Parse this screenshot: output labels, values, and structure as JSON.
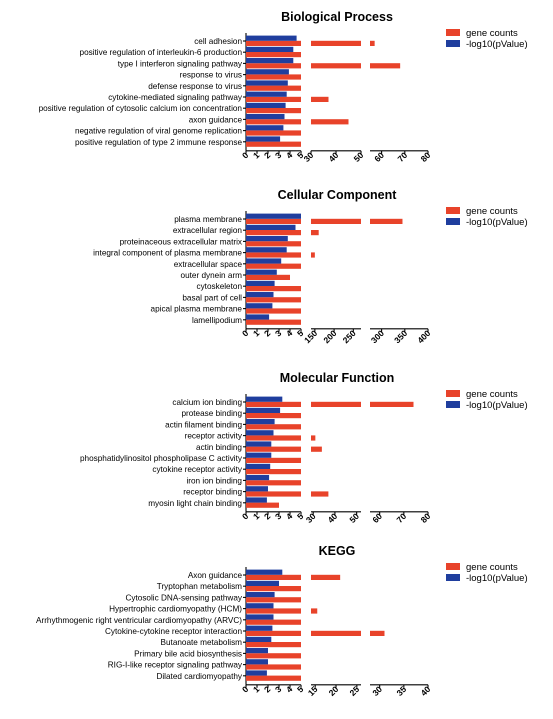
{
  "colors": {
    "gene_counts": "#e8432a",
    "log10p": "#1f3e9e"
  },
  "chart_data": [
    {
      "type": "bar",
      "orientation": "horizontal",
      "title": "Biological Process",
      "legend": {
        "placement": "top-right",
        "entries": [
          "gene counts",
          "-log10(pValue)"
        ]
      },
      "categories": [
        "cell adhesion",
        "positive regulation of interleukin-6 production",
        "type I interferon signaling pathway",
        "response to virus",
        "defense response to virus",
        "cytokine-mediated signaling pathway",
        "positive regulation of cytosolic calcium ion concentration",
        "axon guidance",
        "negative regulation of viral genome replication",
        "positive regulation of type 2 immune response"
      ],
      "series": [
        {
          "name": "gene counts",
          "values": [
            57,
            13,
            68,
            9,
            10,
            37,
            12,
            45,
            10,
            12
          ]
        },
        {
          "name": "-log10(pValue)",
          "values": [
            4.6,
            4.3,
            4.3,
            3.9,
            3.8,
            3.7,
            3.6,
            3.5,
            3.4,
            3.1
          ]
        }
      ],
      "axis_segments": [
        {
          "range": [
            0,
            5
          ],
          "ticks": [
            0,
            1,
            2,
            3,
            4,
            5
          ]
        },
        {
          "range": [
            30,
            50
          ],
          "ticks": [
            30,
            40,
            50
          ]
        },
        {
          "range": [
            55,
            80
          ],
          "ticks": [
            60,
            70,
            80
          ]
        }
      ]
    },
    {
      "type": "bar",
      "orientation": "horizontal",
      "title": "Cellular Component",
      "legend": {
        "placement": "top-right",
        "entries": [
          "gene counts",
          "-log10(pValue)"
        ]
      },
      "categories": [
        "plasma membrane",
        "extracellular region",
        "proteinaceous extracellular matrix",
        "integral component of plasma membrane",
        "extracellular space",
        "outer dynein arm",
        "cytoskeleton",
        "basal part of cell",
        "apical plasma membrane",
        "lamellipodium"
      ],
      "series": [
        {
          "name": "gene counts",
          "values": [
            345,
            160,
            22,
            150,
            50,
            4,
            20,
            5,
            20,
            10
          ]
        },
        {
          "name": "-log10(pValue)",
          "values": [
            5,
            4.5,
            3.8,
            3.7,
            3.2,
            2.8,
            2.6,
            2.5,
            2.4,
            2.1
          ]
        }
      ],
      "axis_segments": [
        {
          "range": [
            0,
            5
          ],
          "ticks": [
            0,
            1,
            2,
            3,
            4,
            5
          ]
        },
        {
          "range": [
            140,
            270
          ],
          "ticks": [
            150,
            200,
            250
          ]
        },
        {
          "range": [
            275,
            400
          ],
          "ticks": [
            300,
            350,
            400
          ]
        }
      ]
    },
    {
      "type": "bar",
      "orientation": "horizontal",
      "title": "Molecular Function",
      "legend": {
        "placement": "top-right",
        "entries": [
          "gene counts",
          "-log10(pValue)"
        ]
      },
      "categories": [
        "calcium ion binding",
        "protease binding",
        "actin filament binding",
        "receptor activity",
        "actin binding",
        "phosphatidylinositol phospholipase C activity",
        "cytokine receptor activity",
        "iron ion binding",
        "receptor binding",
        "myosin light chain binding"
      ],
      "series": [
        {
          "name": "gene counts",
          "values": [
            74,
            13,
            13,
            31,
            34,
            6,
            12,
            12,
            37,
            3
          ]
        },
        {
          "name": "-log10(pValue)",
          "values": [
            3.3,
            3.1,
            2.6,
            2.5,
            2.3,
            2.3,
            2.2,
            2.1,
            2,
            1.9
          ]
        }
      ],
      "axis_segments": [
        {
          "range": [
            0,
            5
          ],
          "ticks": [
            0,
            1,
            2,
            3,
            4,
            5
          ]
        },
        {
          "range": [
            29,
            52
          ],
          "ticks": [
            30,
            40,
            50
          ]
        },
        {
          "range": [
            56,
            80
          ],
          "ticks": [
            60,
            70,
            80
          ]
        }
      ]
    },
    {
      "type": "bar",
      "orientation": "horizontal",
      "title": "KEGG",
      "legend": {
        "placement": "top-right",
        "entries": [
          "gene counts",
          "-log10(pValue)"
        ]
      },
      "categories": [
        "Axon guidance",
        "Tryptophan metabolism",
        "Cytosolic DNA-sensing pathway",
        "Hypertrophic cardiomyopathy (HCM)",
        "Arrhythmogenic right ventricular cardiomyopathy (ARVC)",
        "Cytokine-cytokine receptor interaction",
        "Butanoate metabolism",
        "Primary bile acid biosynthesis",
        "RIG-I-like receptor signaling pathway",
        "Dilated cardiomyopathy"
      ],
      "series": [
        {
          "name": "gene counts",
          "values": [
            21,
            5,
            6,
            15.5,
            7,
            31,
            5,
            5,
            6,
            7
          ]
        },
        {
          "name": "-log10(pValue)",
          "values": [
            3.3,
            3,
            2.6,
            2.5,
            2.5,
            2.4,
            2.3,
            2,
            2,
            1.9
          ]
        }
      ],
      "axis_segments": [
        {
          "range": [
            0,
            5
          ],
          "ticks": [
            0,
            1,
            2,
            3,
            4,
            5
          ]
        },
        {
          "range": [
            14,
            26
          ],
          "ticks": [
            15,
            20,
            25
          ]
        },
        {
          "range": [
            28,
            40
          ],
          "ticks": [
            30,
            35,
            40
          ]
        }
      ]
    }
  ]
}
